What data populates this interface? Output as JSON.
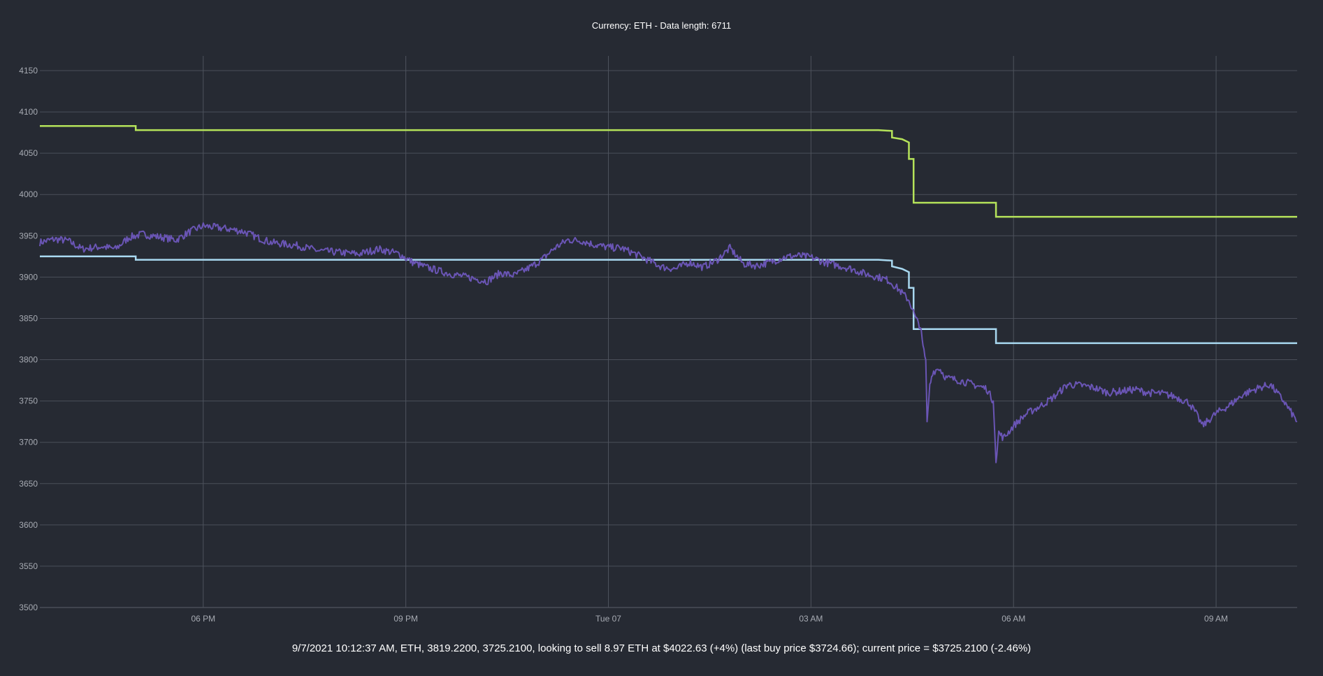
{
  "header": {
    "title": "Currency: ETH - Data length: 6711"
  },
  "footer": {
    "status": "9/7/2021 10:12:37 AM, ETH, 3819.2200, 3725.2100, looking to sell 8.97 ETH at $4022.63 (+4%) (last buy price $3724.66); current price = $3725.2100 (-2.46%)"
  },
  "chart_data": {
    "type": "line",
    "title": "Currency: ETH - Data length: 6711",
    "xlabel": "",
    "ylabel": "",
    "ylim": [
      3500,
      4150
    ],
    "yticks": [
      3500,
      3550,
      3600,
      3650,
      3700,
      3750,
      3800,
      3850,
      3900,
      3950,
      4000,
      4050,
      4100,
      4150
    ],
    "xlim_hours": [
      -2.42,
      16.2
    ],
    "xticks": [
      {
        "label": "06 PM",
        "hour": 0
      },
      {
        "label": "09 PM",
        "hour": 3
      },
      {
        "label": "Tue 07",
        "hour": 6
      },
      {
        "label": "03 AM",
        "hour": 9
      },
      {
        "label": "06 AM",
        "hour": 12
      },
      {
        "label": "09 AM",
        "hour": 15
      }
    ],
    "grid": true,
    "legend": "none",
    "colors": {
      "background": "#262a33",
      "sell_line": "#b5e35a",
      "buy_line": "#a8d8f0",
      "price": "#6a55b5"
    },
    "series": [
      {
        "key": "sell_line",
        "step": true,
        "color": "#b5e35a",
        "points": [
          [
            -2.42,
            4083
          ],
          [
            -1.0,
            4083
          ],
          [
            -1.0,
            4078
          ],
          [
            10.0,
            4078
          ],
          [
            10.2,
            4077
          ],
          [
            10.2,
            4069
          ],
          [
            10.35,
            4067
          ],
          [
            10.45,
            4063
          ],
          [
            10.45,
            4043
          ],
          [
            10.52,
            4043
          ],
          [
            10.52,
            3990
          ],
          [
            11.74,
            3990
          ],
          [
            11.74,
            3973
          ],
          [
            16.2,
            3973
          ]
        ]
      },
      {
        "key": "buy_line",
        "step": true,
        "color": "#a8d8f0",
        "points": [
          [
            -2.42,
            3925
          ],
          [
            -1.0,
            3925
          ],
          [
            -1.0,
            3921
          ],
          [
            10.0,
            3921
          ],
          [
            10.2,
            3920
          ],
          [
            10.2,
            3913
          ],
          [
            10.35,
            3910
          ],
          [
            10.45,
            3906
          ],
          [
            10.45,
            3887
          ],
          [
            10.52,
            3887
          ],
          [
            10.52,
            3837
          ],
          [
            11.74,
            3837
          ],
          [
            11.74,
            3820
          ],
          [
            16.2,
            3820
          ]
        ]
      },
      {
        "key": "price",
        "step": false,
        "color": "#6a55b5",
        "points": [
          [
            -2.42,
            3942
          ],
          [
            -2.2,
            3946
          ],
          [
            -2.0,
            3944
          ],
          [
            -1.8,
            3934
          ],
          [
            -1.5,
            3937
          ],
          [
            -1.3,
            3934
          ],
          [
            -1.1,
            3948
          ],
          [
            -0.9,
            3952
          ],
          [
            -0.6,
            3948
          ],
          [
            -0.4,
            3945
          ],
          [
            -0.2,
            3955
          ],
          [
            0.0,
            3962
          ],
          [
            0.2,
            3960
          ],
          [
            0.4,
            3958
          ],
          [
            0.6,
            3955
          ],
          [
            0.8,
            3948
          ],
          [
            1.0,
            3942
          ],
          [
            1.2,
            3940
          ],
          [
            1.4,
            3938
          ],
          [
            1.7,
            3932
          ],
          [
            2.0,
            3930
          ],
          [
            2.3,
            3928
          ],
          [
            2.6,
            3934
          ],
          [
            2.9,
            3928
          ],
          [
            3.1,
            3918
          ],
          [
            3.3,
            3912
          ],
          [
            3.6,
            3905
          ],
          [
            3.9,
            3900
          ],
          [
            4.2,
            3895
          ],
          [
            4.4,
            3905
          ],
          [
            4.6,
            3902
          ],
          [
            4.8,
            3910
          ],
          [
            5.0,
            3920
          ],
          [
            5.2,
            3935
          ],
          [
            5.4,
            3945
          ],
          [
            5.6,
            3944
          ],
          [
            5.8,
            3939
          ],
          [
            6.0,
            3936
          ],
          [
            6.2,
            3935
          ],
          [
            6.4,
            3928
          ],
          [
            6.6,
            3920
          ],
          [
            6.8,
            3912
          ],
          [
            7.0,
            3910
          ],
          [
            7.2,
            3918
          ],
          [
            7.4,
            3912
          ],
          [
            7.6,
            3920
          ],
          [
            7.8,
            3935
          ],
          [
            8.0,
            3916
          ],
          [
            8.2,
            3914
          ],
          [
            8.4,
            3918
          ],
          [
            8.6,
            3924
          ],
          [
            8.8,
            3926
          ],
          [
            9.0,
            3924
          ],
          [
            9.2,
            3918
          ],
          [
            9.4,
            3914
          ],
          [
            9.6,
            3910
          ],
          [
            9.8,
            3904
          ],
          [
            10.0,
            3900
          ],
          [
            10.15,
            3896
          ],
          [
            10.3,
            3885
          ],
          [
            10.45,
            3872
          ],
          [
            10.5,
            3862
          ],
          [
            10.55,
            3850
          ],
          [
            10.62,
            3840
          ],
          [
            10.66,
            3815
          ],
          [
            10.7,
            3800
          ],
          [
            10.72,
            3725
          ],
          [
            10.76,
            3768
          ],
          [
            10.8,
            3785
          ],
          [
            10.9,
            3790
          ],
          [
            11.0,
            3778
          ],
          [
            11.2,
            3775
          ],
          [
            11.4,
            3770
          ],
          [
            11.6,
            3765
          ],
          [
            11.7,
            3750
          ],
          [
            11.74,
            3678
          ],
          [
            11.78,
            3712
          ],
          [
            11.85,
            3705
          ],
          [
            12.0,
            3720
          ],
          [
            12.2,
            3735
          ],
          [
            12.4,
            3744
          ],
          [
            12.6,
            3755
          ],
          [
            12.8,
            3770
          ],
          [
            13.0,
            3769
          ],
          [
            13.2,
            3766
          ],
          [
            13.4,
            3760
          ],
          [
            13.6,
            3762
          ],
          [
            13.8,
            3764
          ],
          [
            14.0,
            3760
          ],
          [
            14.2,
            3759
          ],
          [
            14.4,
            3755
          ],
          [
            14.6,
            3748
          ],
          [
            14.7,
            3735
          ],
          [
            14.8,
            3720
          ],
          [
            15.0,
            3735
          ],
          [
            15.2,
            3745
          ],
          [
            15.4,
            3758
          ],
          [
            15.6,
            3765
          ],
          [
            15.8,
            3770
          ],
          [
            16.0,
            3750
          ],
          [
            16.2,
            3725
          ]
        ]
      }
    ]
  }
}
